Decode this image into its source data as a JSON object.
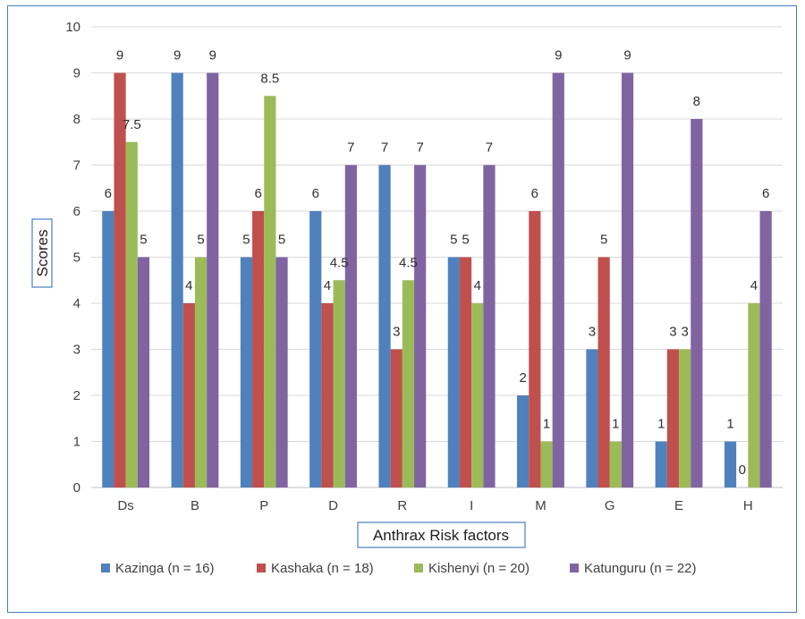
{
  "chart_data": {
    "type": "bar",
    "title": "",
    "xlabel": "Anthrax Risk factors",
    "ylabel": "Scores",
    "ylim": [
      0,
      10
    ],
    "yticks": [
      0,
      1,
      2,
      3,
      4,
      5,
      6,
      7,
      8,
      9,
      10
    ],
    "grid": true,
    "legend_position": "bottom",
    "categories": [
      "Ds",
      "B",
      "P",
      "D",
      "R",
      "I",
      "M",
      "G",
      "E",
      "H"
    ],
    "series": [
      {
        "name": "Kazinga (n = 16)",
        "color": "#4f81bd",
        "values": [
          6,
          9,
          5,
          6,
          7,
          5,
          2,
          3,
          1,
          1
        ]
      },
      {
        "name": "Kashaka (n = 18)",
        "color": "#c0504d",
        "values": [
          9,
          4,
          6,
          4,
          3,
          5,
          6,
          5,
          3,
          0
        ]
      },
      {
        "name": "Kishenyi (n = 20)",
        "color": "#9bbb59",
        "values": [
          7.5,
          5,
          8.5,
          4.5,
          4.5,
          4,
          1,
          1,
          3,
          4
        ]
      },
      {
        "name": "Katunguru (n = 22)",
        "color": "#8064a2",
        "values": [
          5,
          9,
          5,
          7,
          7,
          7,
          9,
          9,
          8,
          6
        ]
      }
    ]
  }
}
